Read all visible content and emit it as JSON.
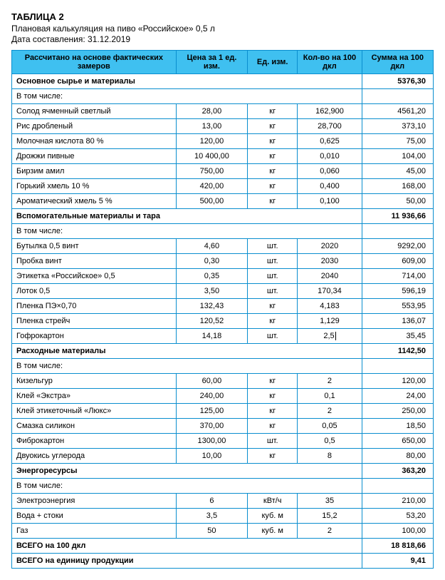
{
  "header": {
    "title": "ТАБЛИЦА 2",
    "subtitle": "Плановая калькуляция на пиво «Российское» 0,5 л",
    "date": "Дата составления: 31.12.2019"
  },
  "columns": [
    "Рассчитано на основе фактических замеров",
    "Цена за 1 ед. изм.",
    "Ед. изм.",
    "Кол-во на 100 дкл",
    "Сумма на 100 дкл"
  ],
  "rows": [
    {
      "type": "section",
      "label": "Основное сырье и материалы",
      "sum": "5376,30"
    },
    {
      "type": "sub",
      "label": "В том числе:"
    },
    {
      "type": "data",
      "label": "Солод ячменный светлый",
      "price": "28,00",
      "unit": "кг",
      "qty": "162,900",
      "sum": "4561,20"
    },
    {
      "type": "data",
      "label": "Рис дробленый",
      "price": "13,00",
      "unit": "кг",
      "qty": "28,700",
      "sum": "373,10"
    },
    {
      "type": "data",
      "label": "Молочная кислота 80 %",
      "price": "120,00",
      "unit": "кг",
      "qty": "0,625",
      "sum": "75,00"
    },
    {
      "type": "data",
      "label": "Дрожжи пивные",
      "price": "10 400,00",
      "unit": "кг",
      "qty": "0,010",
      "sum": "104,00"
    },
    {
      "type": "data",
      "label": "Бирзим амил",
      "price": "750,00",
      "unit": "кг",
      "qty": "0,060",
      "sum": "45,00"
    },
    {
      "type": "data",
      "label": "Горький хмель 10 %",
      "price": "420,00",
      "unit": "кг",
      "qty": "0,400",
      "sum": "168,00"
    },
    {
      "type": "data",
      "label": "Ароматический хмель 5 %",
      "price": "500,00",
      "unit": "кг",
      "qty": "0,100",
      "sum": "50,00"
    },
    {
      "type": "section",
      "label": "Вспомогательные материалы и тара",
      "sum": "11 936,66"
    },
    {
      "type": "sub",
      "label": "В том числе:"
    },
    {
      "type": "data",
      "label": "Бутылка 0,5 винт",
      "price": "4,60",
      "unit": "шт.",
      "qty": "2020",
      "sum": "9292,00"
    },
    {
      "type": "data",
      "label": "Пробка винт",
      "price": "0,30",
      "unit": "шт.",
      "qty": "2030",
      "sum": "609,00"
    },
    {
      "type": "data",
      "label": "Этикетка «Российское» 0,5",
      "price": "0,35",
      "unit": "шт.",
      "qty": "2040",
      "sum": "714,00"
    },
    {
      "type": "data",
      "label": "Лоток 0,5",
      "price": "3,50",
      "unit": "шт.",
      "qty": "170,34",
      "sum": "596,19"
    },
    {
      "type": "data",
      "label": "Пленка ПЭ×0,70",
      "price": "132,43",
      "unit": "кг",
      "qty": "4,183",
      "sum": "553,95"
    },
    {
      "type": "data",
      "label": "Пленка стрейч",
      "price": "120,52",
      "unit": "кг",
      "qty": "1,129",
      "sum": "136,07"
    },
    {
      "type": "data",
      "label": "Гофрокартон",
      "price": "14,18",
      "unit": "шт.",
      "qty": "2,5",
      "sum": "35,45",
      "cursor": true
    },
    {
      "type": "section",
      "label": "Расходные материалы",
      "sum": "1142,50"
    },
    {
      "type": "sub",
      "label": "В том числе:"
    },
    {
      "type": "data",
      "label": "Кизельгур",
      "price": "60,00",
      "unit": "кг",
      "qty": "2",
      "sum": "120,00"
    },
    {
      "type": "data",
      "label": "Клей «Экстра»",
      "price": "240,00",
      "unit": "кг",
      "qty": "0,1",
      "sum": "24,00"
    },
    {
      "type": "data",
      "label": "Клей этикеточный «Люкс»",
      "price": "125,00",
      "unit": "кг",
      "qty": "2",
      "sum": "250,00"
    },
    {
      "type": "data",
      "label": "Смазка силикон",
      "price": "370,00",
      "unit": "кг",
      "qty": "0,05",
      "sum": "18,50"
    },
    {
      "type": "data",
      "label": "Фиброкартон",
      "price": "1300,00",
      "unit": "шт.",
      "qty": "0,5",
      "sum": "650,00"
    },
    {
      "type": "data",
      "label": "Двуокись углерода",
      "price": "10,00",
      "unit": "кг",
      "qty": "8",
      "sum": "80,00"
    },
    {
      "type": "section",
      "label": "Энергоресурсы",
      "sum": "363,20"
    },
    {
      "type": "sub",
      "label": "В том числе:"
    },
    {
      "type": "data",
      "label": "Электроэнергия",
      "price": "6",
      "unit": "кВт/ч",
      "qty": "35",
      "sum": "210,00"
    },
    {
      "type": "data",
      "label": "Вода + стоки",
      "price": "3,5",
      "unit": "куб. м",
      "qty": "15,2",
      "sum": "53,20"
    },
    {
      "type": "data",
      "label": "Газ",
      "price": "50",
      "unit": "куб. м",
      "qty": "2",
      "sum": "100,00"
    },
    {
      "type": "section",
      "label": "ВСЕГО на 100 дкл",
      "sum": "18 818,66"
    },
    {
      "type": "section",
      "label": "ВСЕГО на единицу продукции",
      "sum": "9,41"
    }
  ]
}
